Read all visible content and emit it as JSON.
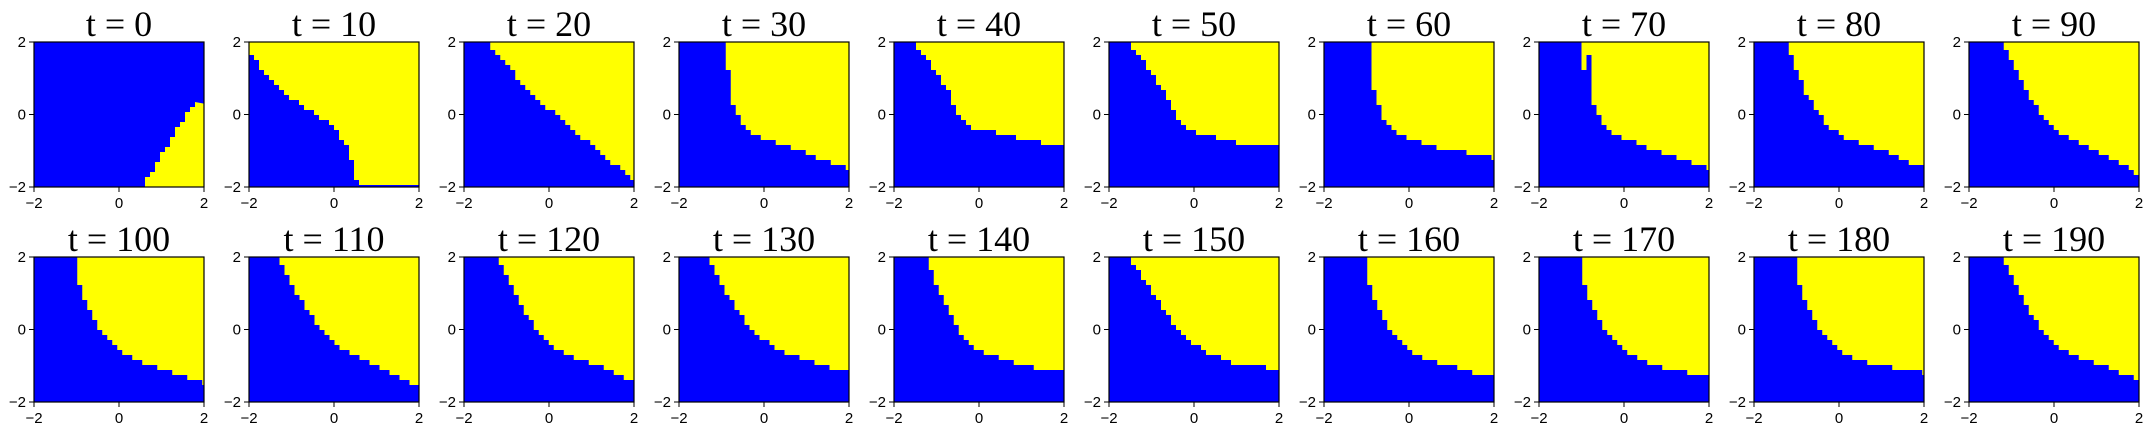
{
  "figure": {
    "colors": {
      "class_a": "#0000ff",
      "class_b": "#ffff00",
      "axis": "#000000"
    }
  },
  "chart_data": [
    {
      "type": "heatmap",
      "title": "t = 0",
      "xlim": [
        -2,
        2
      ],
      "ylim": [
        -2,
        2
      ],
      "xticks": [
        "−2",
        "0",
        "2"
      ],
      "yticks": [
        "−2",
        "0",
        "2"
      ],
      "boundary": [
        [
          0.6,
          -2.0
        ],
        [
          1.0,
          -1.2
        ],
        [
          1.4,
          -0.4
        ],
        [
          1.8,
          0.3
        ],
        [
          2.0,
          0.3
        ]
      ],
      "yellow_side": "right"
    },
    {
      "type": "heatmap",
      "title": "t = 10",
      "xlim": [
        -2,
        2
      ],
      "ylim": [
        -2,
        2
      ],
      "xticks": [
        "−2",
        "0",
        "2"
      ],
      "yticks": [
        "−2",
        "0",
        "2"
      ],
      "boundary": [
        [
          -2.0,
          1.6
        ],
        [
          -1.5,
          0.9
        ],
        [
          -1.0,
          0.4
        ],
        [
          -0.5,
          0.0
        ],
        [
          0.0,
          -0.4
        ],
        [
          0.3,
          -1.0
        ],
        [
          0.5,
          -2.0
        ]
      ],
      "yellow_side": "upper-right"
    },
    {
      "type": "heatmap",
      "title": "t = 20",
      "xlim": [
        -2,
        2
      ],
      "ylim": [
        -2,
        2
      ],
      "xticks": [
        "−2",
        "0",
        "2"
      ],
      "yticks": [
        "−2",
        "0",
        "2"
      ],
      "boundary": [
        [
          -1.5,
          2.0
        ],
        [
          -1.0,
          1.3
        ],
        [
          -0.5,
          0.6
        ],
        [
          0.0,
          0.1
        ],
        [
          0.5,
          -0.4
        ],
        [
          1.0,
          -0.9
        ],
        [
          1.5,
          -1.4
        ],
        [
          2.0,
          -1.9
        ]
      ],
      "yellow_side": "upper-right"
    },
    {
      "type": "heatmap",
      "title": "t = 30",
      "xlim": [
        -2,
        2
      ],
      "ylim": [
        -2,
        2
      ],
      "xticks": [
        "−2",
        "0",
        "2"
      ],
      "yticks": [
        "−2",
        "0",
        "2"
      ],
      "boundary": [
        [
          -0.8,
          2.0
        ],
        [
          -0.9,
          1.2
        ],
        [
          -0.8,
          0.3
        ],
        [
          -0.5,
          -0.4
        ],
        [
          0.0,
          -0.7
        ],
        [
          0.5,
          -0.9
        ],
        [
          1.0,
          -1.1
        ],
        [
          1.5,
          -1.3
        ],
        [
          2.0,
          -1.5
        ]
      ],
      "yellow_side": "upper-right"
    },
    {
      "type": "heatmap",
      "title": "t = 40",
      "xlim": [
        -2,
        2
      ],
      "ylim": [
        -2,
        2
      ],
      "xticks": [
        "−2",
        "0",
        "2"
      ],
      "yticks": [
        "−2",
        "0",
        "2"
      ],
      "boundary": [
        [
          -1.6,
          2.0
        ],
        [
          -1.2,
          1.4
        ],
        [
          -0.8,
          0.7
        ],
        [
          -0.5,
          -0.1
        ],
        [
          -0.2,
          -0.4
        ],
        [
          0.3,
          -0.5
        ],
        [
          1.0,
          -0.7
        ],
        [
          1.5,
          -0.8
        ],
        [
          2.0,
          -0.9
        ]
      ],
      "yellow_side": "upper-right"
    },
    {
      "type": "heatmap",
      "title": "t = 50",
      "xlim": [
        -2,
        2
      ],
      "ylim": [
        -2,
        2
      ],
      "xticks": [
        "−2",
        "0",
        "2"
      ],
      "yticks": [
        "−2",
        "0",
        "2"
      ],
      "boundary": [
        [
          -1.6,
          2.0
        ],
        [
          -1.2,
          1.4
        ],
        [
          -0.8,
          0.7
        ],
        [
          -0.5,
          0.0
        ],
        [
          -0.2,
          -0.4
        ],
        [
          0.3,
          -0.6
        ],
        [
          1.0,
          -0.8
        ],
        [
          1.5,
          -0.9
        ],
        [
          2.0,
          -0.9
        ]
      ],
      "yellow_side": "upper-right"
    },
    {
      "type": "heatmap",
      "title": "t = 60",
      "xlim": [
        -2,
        2
      ],
      "ylim": [
        -2,
        2
      ],
      "xticks": [
        "−2",
        "0",
        "2"
      ],
      "yticks": [
        "−2",
        "0",
        "2"
      ],
      "boundary": [
        [
          -1.0,
          2.0
        ],
        [
          -1.0,
          1.4
        ],
        [
          -0.9,
          0.7
        ],
        [
          -0.7,
          0.0
        ],
        [
          -0.4,
          -0.5
        ],
        [
          0.0,
          -0.7
        ],
        [
          0.5,
          -0.9
        ],
        [
          1.0,
          -1.0
        ],
        [
          1.5,
          -1.1
        ],
        [
          2.0,
          -1.2
        ]
      ],
      "yellow_side": "upper-right"
    },
    {
      "type": "heatmap",
      "title": "t = 70",
      "xlim": [
        -2,
        2
      ],
      "ylim": [
        -2,
        2
      ],
      "xticks": [
        "−2",
        "0",
        "2"
      ],
      "yticks": [
        "−2",
        "0",
        "2"
      ],
      "boundary": [
        [
          -0.9,
          2.0
        ],
        [
          -1.0,
          1.2
        ],
        [
          -0.8,
          0.3
        ],
        [
          -0.5,
          -0.4
        ],
        [
          0.0,
          -0.7
        ],
        [
          0.5,
          -0.9
        ],
        [
          1.0,
          -1.1
        ],
        [
          1.5,
          -1.3
        ],
        [
          2.0,
          -1.5
        ]
      ],
      "yellow_side": "upper-right"
    },
    {
      "type": "heatmap",
      "title": "t = 80",
      "xlim": [
        -2,
        2
      ],
      "ylim": [
        -2,
        2
      ],
      "xticks": [
        "−2",
        "0",
        "2"
      ],
      "yticks": [
        "−2",
        "0",
        "2"
      ],
      "boundary": [
        [
          -1.3,
          2.0
        ],
        [
          -1.1,
          1.3
        ],
        [
          -0.8,
          0.5
        ],
        [
          -0.4,
          -0.2
        ],
        [
          0.0,
          -0.6
        ],
        [
          0.5,
          -0.8
        ],
        [
          1.0,
          -1.0
        ],
        [
          1.5,
          -1.3
        ],
        [
          2.0,
          -1.5
        ]
      ],
      "yellow_side": "upper-right"
    },
    {
      "type": "heatmap",
      "title": "t = 90",
      "xlim": [
        -2,
        2
      ],
      "ylim": [
        -2,
        2
      ],
      "xticks": [
        "−2",
        "0",
        "2"
      ],
      "yticks": [
        "−2",
        "0",
        "2"
      ],
      "boundary": [
        [
          -1.3,
          2.0
        ],
        [
          -1.0,
          1.3
        ],
        [
          -0.7,
          0.6
        ],
        [
          -0.3,
          -0.1
        ],
        [
          0.2,
          -0.6
        ],
        [
          0.8,
          -0.9
        ],
        [
          1.3,
          -1.2
        ],
        [
          2.0,
          -1.7
        ]
      ],
      "yellow_side": "upper-right"
    },
    {
      "type": "heatmap",
      "title": "t = 100",
      "xlim": [
        -2,
        2
      ],
      "ylim": [
        -2,
        2
      ],
      "xticks": [
        "−2",
        "0",
        "2"
      ],
      "yticks": [
        "−2",
        "0",
        "2"
      ],
      "boundary": [
        [
          -1.1,
          2.0
        ],
        [
          -1.0,
          1.3
        ],
        [
          -0.8,
          0.6
        ],
        [
          -0.5,
          -0.1
        ],
        [
          0.0,
          -0.6
        ],
        [
          0.5,
          -0.9
        ],
        [
          1.0,
          -1.1
        ],
        [
          1.5,
          -1.3
        ],
        [
          2.0,
          -1.5
        ]
      ],
      "yellow_side": "upper-right"
    },
    {
      "type": "heatmap",
      "title": "t = 110",
      "xlim": [
        -2,
        2
      ],
      "ylim": [
        -2,
        2
      ],
      "xticks": [
        "−2",
        "0",
        "2"
      ],
      "yticks": [
        "−2",
        "0",
        "2"
      ],
      "boundary": [
        [
          -1.4,
          2.0
        ],
        [
          -1.1,
          1.3
        ],
        [
          -0.7,
          0.6
        ],
        [
          -0.3,
          -0.1
        ],
        [
          0.2,
          -0.6
        ],
        [
          0.8,
          -0.9
        ],
        [
          1.3,
          -1.2
        ],
        [
          2.0,
          -1.6
        ]
      ],
      "yellow_side": "upper-right"
    },
    {
      "type": "heatmap",
      "title": "t = 120",
      "xlim": [
        -2,
        2
      ],
      "ylim": [
        -2,
        2
      ],
      "xticks": [
        "−2",
        "0",
        "2"
      ],
      "yticks": [
        "−2",
        "0",
        "2"
      ],
      "boundary": [
        [
          -1.3,
          2.0
        ],
        [
          -1.0,
          1.3
        ],
        [
          -0.7,
          0.6
        ],
        [
          -0.3,
          -0.1
        ],
        [
          0.2,
          -0.6
        ],
        [
          0.8,
          -0.9
        ],
        [
          1.3,
          -1.1
        ],
        [
          2.0,
          -1.5
        ]
      ],
      "yellow_side": "upper-right"
    },
    {
      "type": "heatmap",
      "title": "t = 130",
      "xlim": [
        -2,
        2
      ],
      "ylim": [
        -2,
        2
      ],
      "xticks": [
        "−2",
        "0",
        "2"
      ],
      "yticks": [
        "−2",
        "0",
        "2"
      ],
      "boundary": [
        [
          -1.4,
          2.0
        ],
        [
          -1.1,
          1.3
        ],
        [
          -0.7,
          0.6
        ],
        [
          -0.3,
          -0.1
        ],
        [
          0.2,
          -0.5
        ],
        [
          0.8,
          -0.8
        ],
        [
          1.3,
          -1.0
        ],
        [
          2.0,
          -1.2
        ]
      ],
      "yellow_side": "upper-right"
    },
    {
      "type": "heatmap",
      "title": "t = 140",
      "xlim": [
        -2,
        2
      ],
      "ylim": [
        -2,
        2
      ],
      "xticks": [
        "−2",
        "0",
        "2"
      ],
      "yticks": [
        "−2",
        "0",
        "2"
      ],
      "boundary": [
        [
          -1.3,
          2.0
        ],
        [
          -1.1,
          1.3
        ],
        [
          -0.8,
          0.6
        ],
        [
          -0.5,
          -0.1
        ],
        [
          -0.1,
          -0.6
        ],
        [
          0.5,
          -0.8
        ],
        [
          1.0,
          -1.0
        ],
        [
          1.5,
          -1.1
        ],
        [
          2.0,
          -1.2
        ]
      ],
      "yellow_side": "upper-right"
    },
    {
      "type": "heatmap",
      "title": "t = 150",
      "xlim": [
        -2,
        2
      ],
      "ylim": [
        -2,
        2
      ],
      "xticks": [
        "−2",
        "0",
        "2"
      ],
      "yticks": [
        "−2",
        "0",
        "2"
      ],
      "boundary": [
        [
          -1.6,
          2.0
        ],
        [
          -1.2,
          1.3
        ],
        [
          -0.8,
          0.6
        ],
        [
          -0.4,
          -0.1
        ],
        [
          0.2,
          -0.6
        ],
        [
          0.8,
          -0.9
        ],
        [
          1.3,
          -1.0
        ],
        [
          2.0,
          -1.1
        ]
      ],
      "yellow_side": "upper-right"
    },
    {
      "type": "heatmap",
      "title": "t = 160",
      "xlim": [
        -2,
        2
      ],
      "ylim": [
        -2,
        2
      ],
      "xticks": [
        "−2",
        "0",
        "2"
      ],
      "yticks": [
        "−2",
        "0",
        "2"
      ],
      "boundary": [
        [
          -1.1,
          2.0
        ],
        [
          -1.0,
          1.3
        ],
        [
          -0.8,
          0.6
        ],
        [
          -0.5,
          -0.1
        ],
        [
          0.0,
          -0.6
        ],
        [
          0.5,
          -0.9
        ],
        [
          1.0,
          -1.0
        ],
        [
          1.5,
          -1.2
        ],
        [
          2.0,
          -1.3
        ]
      ],
      "yellow_side": "upper-right"
    },
    {
      "type": "heatmap",
      "title": "t = 170",
      "xlim": [
        -2,
        2
      ],
      "ylim": [
        -2,
        2
      ],
      "xticks": [
        "−2",
        "0",
        "2"
      ],
      "yticks": [
        "−2",
        "0",
        "2"
      ],
      "boundary": [
        [
          -1.1,
          2.0
        ],
        [
          -1.0,
          1.3
        ],
        [
          -0.8,
          0.6
        ],
        [
          -0.5,
          -0.1
        ],
        [
          0.0,
          -0.6
        ],
        [
          0.5,
          -0.9
        ],
        [
          1.0,
          -1.1
        ],
        [
          1.5,
          -1.2
        ],
        [
          2.0,
          -1.3
        ]
      ],
      "yellow_side": "upper-right"
    },
    {
      "type": "heatmap",
      "title": "t = 180",
      "xlim": [
        -2,
        2
      ],
      "ylim": [
        -2,
        2
      ],
      "xticks": [
        "−2",
        "0",
        "2"
      ],
      "yticks": [
        "−2",
        "0",
        "2"
      ],
      "boundary": [
        [
          -1.1,
          2.0
        ],
        [
          -1.0,
          1.3
        ],
        [
          -0.8,
          0.6
        ],
        [
          -0.5,
          -0.1
        ],
        [
          0.0,
          -0.6
        ],
        [
          0.5,
          -0.9
        ],
        [
          1.0,
          -1.0
        ],
        [
          1.5,
          -1.1
        ],
        [
          2.0,
          -1.2
        ]
      ],
      "yellow_side": "upper-right"
    },
    {
      "type": "heatmap",
      "title": "t = 190",
      "xlim": [
        -2,
        2
      ],
      "ylim": [
        -2,
        2
      ],
      "xticks": [
        "−2",
        "0",
        "2"
      ],
      "yticks": [
        "−2",
        "0",
        "2"
      ],
      "boundary": [
        [
          -1.3,
          2.0
        ],
        [
          -1.0,
          1.3
        ],
        [
          -0.7,
          0.6
        ],
        [
          -0.3,
          -0.1
        ],
        [
          0.2,
          -0.6
        ],
        [
          0.8,
          -0.9
        ],
        [
          1.3,
          -1.1
        ],
        [
          2.0,
          -1.4
        ]
      ],
      "yellow_side": "upper-right"
    }
  ]
}
